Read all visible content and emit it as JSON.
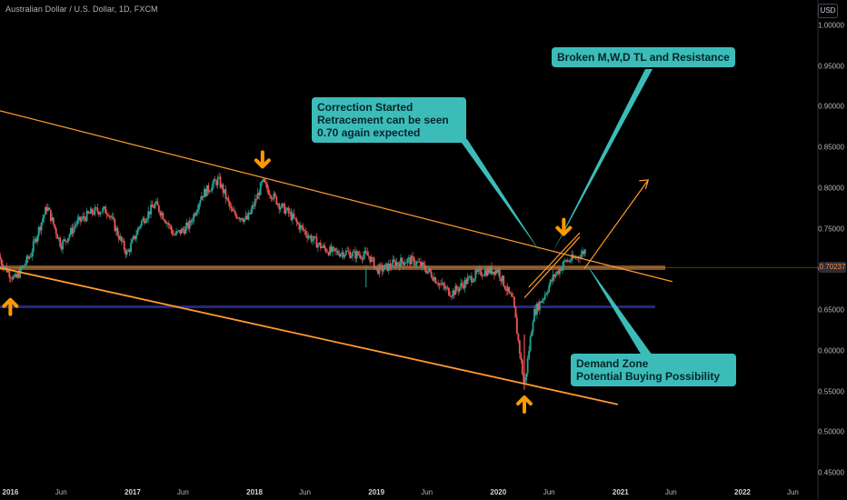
{
  "header": {
    "symbol_title": "Australian Dollar / U.S. Dollar, 1D, FXCM",
    "currency_button": "USD"
  },
  "callouts": {
    "broken": [
      "Broken M,W,D TL and Resistance"
    ],
    "correction": [
      "Correction Started",
      "Retracement can be seen",
      "0.70 again expected"
    ],
    "demand": [
      "Demand Zone",
      "Potential Buying Possibility"
    ]
  },
  "colors": {
    "background": "#000000",
    "up_candle": "#26a69a",
    "down_candle": "#ef5350",
    "trendline": "#ff9a2e",
    "arrow": "#ff9900",
    "support_zone": "#8a5a2b",
    "demand_line": "#2a2a8c",
    "callout": "#3cbcb9"
  },
  "chart_data": {
    "type": "line",
    "price_last": "0.70237",
    "ylim": [
      0.45,
      1.02
    ],
    "yticks": [
      "1.00000",
      "0.95000",
      "0.90000",
      "0.85000",
      "0.80000",
      "0.75000",
      "0.70000",
      "0.65000",
      "0.60000",
      "0.55000",
      "0.50000",
      "0.45000"
    ],
    "ytick_values": [
      1.0,
      0.95,
      0.9,
      0.85,
      0.8,
      0.75,
      0.7,
      0.65,
      0.6,
      0.55,
      0.5,
      0.45
    ],
    "xlim": [
      "2015-12-01",
      "2022-08-15"
    ],
    "xticks": [
      {
        "label": "2016",
        "date": "2016-01-01",
        "year": true
      },
      {
        "label": "Jun",
        "date": "2016-06-01",
        "year": false
      },
      {
        "label": "2017",
        "date": "2017-01-01",
        "year": true
      },
      {
        "label": "Jun",
        "date": "2017-06-01",
        "year": false
      },
      {
        "label": "2018",
        "date": "2018-01-01",
        "year": true
      },
      {
        "label": "Jun",
        "date": "2018-06-01",
        "year": false
      },
      {
        "label": "2019",
        "date": "2019-01-01",
        "year": true
      },
      {
        "label": "Jun",
        "date": "2019-06-01",
        "year": false
      },
      {
        "label": "2020",
        "date": "2020-01-01",
        "year": true
      },
      {
        "label": "Jun",
        "date": "2020-06-01",
        "year": false
      },
      {
        "label": "2021",
        "date": "2021-01-01",
        "year": true
      },
      {
        "label": "Jun",
        "date": "2021-06-01",
        "year": false
      },
      {
        "label": "2022",
        "date": "2022-01-01",
        "year": true
      },
      {
        "label": "Jun",
        "date": "2022-06-01",
        "year": false
      }
    ],
    "series": [
      {
        "x": [
          "2015-12-01",
          "2016-01-15",
          "2016-03-01",
          "2016-04-20",
          "2016-06-01",
          "2016-07-15",
          "2016-09-01",
          "2016-10-20",
          "2016-12-15",
          "2017-01-25",
          "2017-03-10",
          "2017-05-05",
          "2017-06-20",
          "2017-07-25",
          "2017-09-15",
          "2017-10-25",
          "2017-12-10",
          "2018-01-25",
          "2018-03-20",
          "2018-05-10",
          "2018-07-01",
          "2018-09-01",
          "2018-10-25",
          "2018-12-10",
          "2019-01-03",
          "2019-02-20",
          "2019-04-15",
          "2019-06-15",
          "2019-08-15",
          "2019-10-15",
          "2019-12-31",
          "2020-02-15",
          "2020-03-19",
          "2020-04-15",
          "2020-05-15",
          "2020-06-15",
          "2020-07-20",
          "2020-08-20",
          "2020-09-20"
        ],
        "values": [
          0.718,
          0.69,
          0.712,
          0.775,
          0.735,
          0.76,
          0.765,
          0.768,
          0.725,
          0.76,
          0.775,
          0.74,
          0.76,
          0.795,
          0.805,
          0.765,
          0.765,
          0.812,
          0.773,
          0.752,
          0.74,
          0.72,
          0.712,
          0.718,
          0.705,
          0.71,
          0.705,
          0.695,
          0.676,
          0.685,
          0.702,
          0.665,
          0.555,
          0.64,
          0.66,
          0.69,
          0.715,
          0.72,
          0.725
        ]
      }
    ],
    "trendlines": [
      {
        "x": [
          "2015-12-01",
          "2021-06-05"
        ],
        "y": [
          0.895,
          0.685
        ]
      },
      {
        "x": [
          "2015-12-01",
          "2020-12-24"
        ],
        "y": [
          0.702,
          0.534
        ]
      },
      {
        "x": [
          "2020-03-19",
          "2020-09-01"
        ],
        "y": [
          0.665,
          0.74
        ]
      },
      {
        "x": [
          "2020-04-01",
          "2020-09-01"
        ],
        "y": [
          0.678,
          0.745
        ]
      },
      {
        "x": [
          "2020-09-15",
          "2021-03-25"
        ],
        "y": [
          0.701,
          0.81
        ]
      }
    ],
    "levels": [
      {
        "value": 0.702,
        "from": "2015-12-01",
        "to": "2021-05-15"
      },
      {
        "value": 0.654,
        "from": "2015-12-01",
        "to": "2021-04-15"
      }
    ],
    "markers": [
      {
        "dir": "up",
        "x": "2016-01-01",
        "y": 0.656
      },
      {
        "dir": "down",
        "x": "2018-01-25",
        "y": 0.833
      },
      {
        "dir": "up",
        "x": "2020-03-19",
        "y": 0.536
      },
      {
        "dir": "down",
        "x": "2020-07-15",
        "y": 0.75
      }
    ]
  }
}
